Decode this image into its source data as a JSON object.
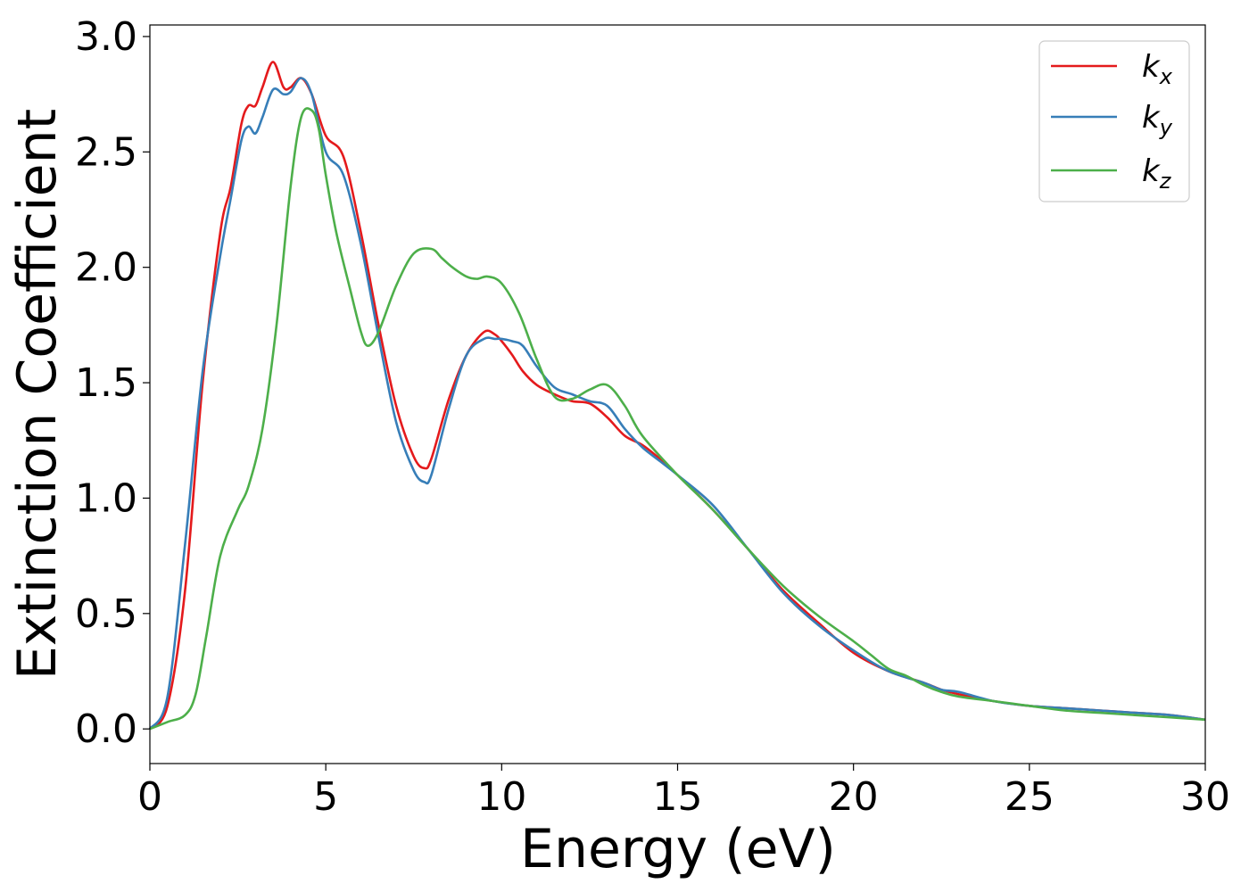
{
  "chart_data": {
    "type": "line",
    "xlabel": "Energy (eV)",
    "ylabel": "Extinction Coefficient",
    "xlim": [
      0,
      30
    ],
    "ylim": [
      -0.15,
      3.05
    ],
    "xticks": [
      "0",
      "5",
      "10",
      "15",
      "20",
      "25",
      "30"
    ],
    "yticks": [
      "0.0",
      "0.5",
      "1.0",
      "1.5",
      "2.0",
      "2.5",
      "3.0"
    ],
    "grid": false,
    "legend_position": "top-right",
    "series": [
      {
        "name": "k",
        "subscript": "x",
        "color": "#e41a1c",
        "x": [
          0,
          0.5,
          1.0,
          1.5,
          2.0,
          2.3,
          2.6,
          2.8,
          3.0,
          3.2,
          3.5,
          3.8,
          4.0,
          4.3,
          4.6,
          5.0,
          5.5,
          6.0,
          6.5,
          7.0,
          7.5,
          7.8,
          8.0,
          8.5,
          9.0,
          9.5,
          9.8,
          10.0,
          10.3,
          10.6,
          11.0,
          11.5,
          12.0,
          12.5,
          13.0,
          13.5,
          14.0,
          14.5,
          15.0,
          16.0,
          17.0,
          18.0,
          19.0,
          20.0,
          21.0,
          22.0,
          22.5,
          23.0,
          24.0,
          25.0,
          26.0,
          27.0,
          28.0,
          29.0,
          30.0
        ],
        "y": [
          0.0,
          0.1,
          0.6,
          1.5,
          2.15,
          2.35,
          2.62,
          2.7,
          2.7,
          2.78,
          2.89,
          2.78,
          2.78,
          2.82,
          2.75,
          2.57,
          2.48,
          2.15,
          1.75,
          1.4,
          1.18,
          1.13,
          1.17,
          1.43,
          1.62,
          1.72,
          1.71,
          1.68,
          1.62,
          1.55,
          1.49,
          1.45,
          1.42,
          1.41,
          1.35,
          1.27,
          1.23,
          1.17,
          1.1,
          0.95,
          0.78,
          0.6,
          0.46,
          0.33,
          0.25,
          0.2,
          0.17,
          0.15,
          0.12,
          0.1,
          0.09,
          0.08,
          0.07,
          0.06,
          0.04
        ]
      },
      {
        "name": "k",
        "subscript": "y",
        "color": "#377eb8",
        "x": [
          0,
          0.5,
          1.0,
          1.5,
          2.0,
          2.3,
          2.6,
          2.8,
          3.0,
          3.2,
          3.5,
          3.8,
          4.0,
          4.3,
          4.6,
          5.0,
          5.5,
          6.0,
          6.5,
          7.0,
          7.5,
          7.8,
          8.0,
          8.5,
          9.0,
          9.5,
          9.8,
          10.0,
          10.3,
          10.6,
          11.0,
          11.5,
          12.0,
          12.5,
          13.0,
          13.5,
          14.0,
          14.5,
          15.0,
          16.0,
          17.0,
          18.0,
          19.0,
          20.0,
          21.0,
          22.0,
          22.5,
          23.0,
          24.0,
          25.0,
          26.0,
          27.0,
          28.0,
          29.0,
          30.0
        ],
        "y": [
          0.0,
          0.14,
          0.8,
          1.55,
          2.05,
          2.3,
          2.55,
          2.61,
          2.58,
          2.65,
          2.77,
          2.75,
          2.76,
          2.82,
          2.75,
          2.5,
          2.4,
          2.1,
          1.7,
          1.33,
          1.12,
          1.07,
          1.1,
          1.39,
          1.62,
          1.69,
          1.69,
          1.69,
          1.68,
          1.66,
          1.57,
          1.48,
          1.45,
          1.42,
          1.4,
          1.3,
          1.22,
          1.16,
          1.1,
          0.97,
          0.78,
          0.59,
          0.45,
          0.34,
          0.25,
          0.2,
          0.17,
          0.16,
          0.12,
          0.1,
          0.09,
          0.08,
          0.07,
          0.06,
          0.04
        ]
      },
      {
        "name": "k",
        "subscript": "z",
        "color": "#4daf4a",
        "x": [
          0,
          0.5,
          1.0,
          1.3,
          1.6,
          2.0,
          2.5,
          2.8,
          3.2,
          3.6,
          4.0,
          4.3,
          4.6,
          4.8,
          5.0,
          5.3,
          5.7,
          6.0,
          6.2,
          6.5,
          7.0,
          7.5,
          8.0,
          8.3,
          8.6,
          9.0,
          9.3,
          9.6,
          10.0,
          10.5,
          11.0,
          11.5,
          12.0,
          12.5,
          13.0,
          13.5,
          14.0,
          15.0,
          16.0,
          17.0,
          18.0,
          19.0,
          20.0,
          20.5,
          21.0,
          21.5,
          22.0,
          22.5,
          23.0,
          24.0,
          25.0,
          26.0,
          27.0,
          28.0,
          29.0,
          30.0
        ],
        "y": [
          0.0,
          0.03,
          0.06,
          0.15,
          0.4,
          0.75,
          0.95,
          1.05,
          1.3,
          1.75,
          2.35,
          2.65,
          2.68,
          2.6,
          2.4,
          2.15,
          1.9,
          1.72,
          1.66,
          1.72,
          1.92,
          2.06,
          2.08,
          2.04,
          2.0,
          1.96,
          1.95,
          1.96,
          1.93,
          1.8,
          1.6,
          1.44,
          1.43,
          1.47,
          1.49,
          1.4,
          1.27,
          1.1,
          0.95,
          0.78,
          0.62,
          0.49,
          0.38,
          0.32,
          0.26,
          0.23,
          0.19,
          0.16,
          0.14,
          0.12,
          0.1,
          0.08,
          0.07,
          0.06,
          0.05,
          0.04
        ]
      }
    ]
  }
}
